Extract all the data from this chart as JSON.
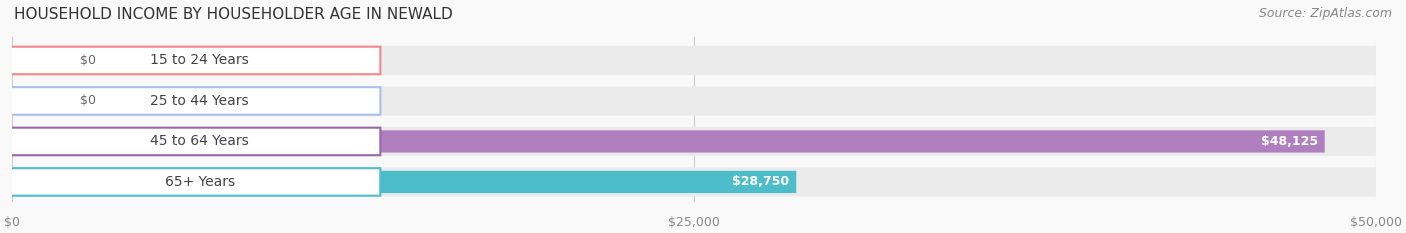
{
  "title": "HOUSEHOLD INCOME BY HOUSEHOLDER AGE IN NEWALD",
  "source": "Source: ZipAtlas.com",
  "categories": [
    "15 to 24 Years",
    "25 to 44 Years",
    "45 to 64 Years",
    "65+ Years"
  ],
  "values": [
    0,
    0,
    48125,
    28750
  ],
  "bar_colors": [
    "#f0878a",
    "#a8c0e8",
    "#b07fc0",
    "#4dbdcc"
  ],
  "label_colors": [
    "#f0878a",
    "#a8c0e8",
    "#9966aa",
    "#4dbdcc"
  ],
  "bg_track_color": "#f0f0f0",
  "bar_bg_color": "#ebebeb",
  "xlim": [
    0,
    50000
  ],
  "xticks": [
    0,
    25000,
    50000
  ],
  "xticklabels": [
    "$0",
    "$25,000",
    "$50,000"
  ],
  "value_labels": [
    "$0",
    "$0",
    "$48,125",
    "$28,750"
  ],
  "title_fontsize": 11,
  "source_fontsize": 9,
  "label_fontsize": 10,
  "value_fontsize": 9,
  "background_color": "#f9f9f9"
}
